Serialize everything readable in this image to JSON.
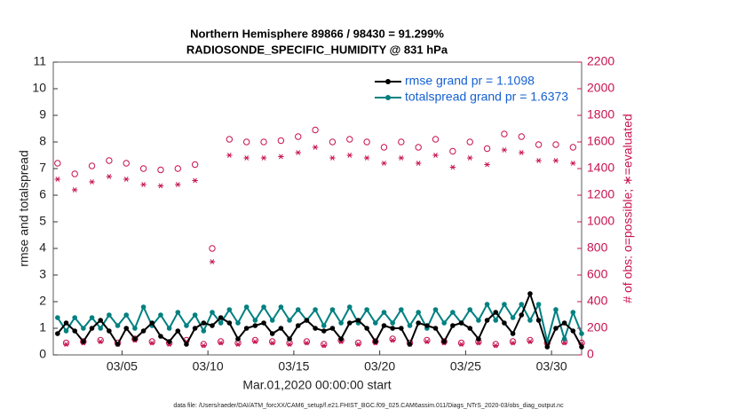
{
  "chart_data": {
    "type": "line",
    "title": "Northern Hemisphere 89866 / 98430 = 91.299%",
    "subtitle": "RADIOSONDE_SPECIFIC_HUMIDITY @ 831 hPa",
    "x_label": "Mar.01,2020 00:00:00 start",
    "y_label": "rmse and totalspread",
    "y2_label": "# of obs: o=possible; ∗=evaluated",
    "footer": "data file: /Users/raeder/DAI/ATM_forcXX/CAM6_setup/f.e21.FHIST_BGC.f09_025.CAM6assim.011/Diags_NTrS_2020-03/obs_diag_output.nc",
    "xlim": [
      0,
      30.75
    ],
    "xticks": [
      {
        "value": 4,
        "label": "03/05"
      },
      {
        "value": 9,
        "label": "03/10"
      },
      {
        "value": 14,
        "label": "03/15"
      },
      {
        "value": 19,
        "label": "03/20"
      },
      {
        "value": 24,
        "label": "03/25"
      },
      {
        "value": 29,
        "label": "03/30"
      }
    ],
    "ylim": [
      0,
      11
    ],
    "yticks": [
      0,
      1,
      2,
      3,
      4,
      5,
      6,
      7,
      8,
      9,
      10,
      11
    ],
    "y2lim": [
      0,
      2200
    ],
    "y2ticks": [
      0,
      200,
      400,
      600,
      800,
      1000,
      1200,
      1400,
      1600,
      1800,
      2000,
      2200
    ],
    "x": [
      0.25,
      0.75,
      1.25,
      1.75,
      2.25,
      2.75,
      3.25,
      3.75,
      4.25,
      4.75,
      5.25,
      5.75,
      6.25,
      6.75,
      7.25,
      7.75,
      8.25,
      8.75,
      9.25,
      9.75,
      10.25,
      10.75,
      11.25,
      11.75,
      12.25,
      12.75,
      13.25,
      13.75,
      14.25,
      14.75,
      15.25,
      15.75,
      16.25,
      16.75,
      17.25,
      17.75,
      18.25,
      18.75,
      19.25,
      19.75,
      20.25,
      20.75,
      21.25,
      21.75,
      22.25,
      22.75,
      23.25,
      23.75,
      24.25,
      24.75,
      25.25,
      25.75,
      26.25,
      26.75,
      27.25,
      27.75,
      28.25,
      28.75,
      29.25,
      29.75,
      30.25,
      30.75
    ],
    "series": [
      {
        "name": "rmse grand pr = 1.1098",
        "color": "#000000",
        "marker": "filled-circle",
        "line": true,
        "values": [
          0.8,
          1.2,
          0.9,
          0.5,
          1.0,
          1.3,
          0.9,
          0.4,
          1.0,
          0.6,
          0.9,
          1.2,
          0.7,
          0.5,
          0.9,
          0.4,
          1.0,
          1.2,
          1.1,
          1.4,
          1.2,
          0.6,
          1.0,
          1.1,
          1.2,
          0.8,
          1.0,
          0.6,
          1.1,
          1.3,
          1.0,
          0.9,
          1.0,
          0.6,
          1.2,
          1.3,
          1.0,
          0.5,
          1.1,
          1.0,
          1.0,
          0.4,
          1.2,
          1.1,
          1.0,
          0.5,
          1.1,
          1.2,
          1.0,
          0.6,
          1.3,
          1.6,
          1.2,
          0.8,
          1.5,
          2.3,
          1.3,
          0.3,
          1.0,
          1.2,
          0.9,
          0.3
        ]
      },
      {
        "name": "totalspread grand pr = 1.6373",
        "color": "#008080",
        "marker": "filled-circle",
        "line": true,
        "values": [
          1.4,
          0.9,
          1.4,
          1.0,
          1.4,
          1.0,
          1.5,
          1.1,
          1.5,
          1.0,
          1.8,
          1.1,
          1.5,
          1.0,
          1.6,
          1.1,
          1.5,
          0.9,
          1.6,
          1.2,
          1.7,
          1.2,
          1.8,
          1.3,
          1.8,
          1.3,
          1.8,
          1.3,
          1.7,
          1.3,
          1.7,
          1.1,
          1.7,
          1.2,
          1.8,
          1.2,
          1.7,
          1.2,
          1.6,
          1.2,
          1.7,
          1.1,
          1.6,
          1.0,
          1.7,
          1.2,
          1.6,
          1.2,
          1.7,
          1.3,
          1.9,
          1.3,
          1.9,
          1.4,
          1.9,
          1.3,
          1.9,
          0.5,
          1.7,
          0.6,
          1.6,
          0.8
        ]
      },
      {
        "color": "#c8134f",
        "marker": "open-circle",
        "line": false,
        "axis": "y2",
        "values": [
          1440,
          90,
          1360,
          100,
          1420,
          110,
          1460,
          90,
          1440,
          120,
          1400,
          100,
          1390,
          90,
          1400,
          110,
          1430,
          80,
          800,
          100,
          1620,
          90,
          1600,
          110,
          1600,
          100,
          1610,
          90,
          1640,
          100,
          1690,
          80,
          1600,
          110,
          1620,
          90,
          1600,
          100,
          1560,
          120,
          1600,
          90,
          1560,
          110,
          1620,
          100,
          1530,
          90,
          1600,
          100,
          1550,
          80,
          1660,
          100,
          1640,
          110,
          1580,
          90,
          1580,
          100,
          1560,
          90
        ]
      },
      {
        "color": "#c8134f",
        "marker": "asterisk",
        "line": false,
        "axis": "y2",
        "values": [
          1320,
          80,
          1240,
          90,
          1300,
          100,
          1340,
          80,
          1320,
          110,
          1280,
          90,
          1270,
          80,
          1280,
          100,
          1310,
          70,
          700,
          90,
          1500,
          80,
          1480,
          100,
          1480,
          90,
          1490,
          80,
          1520,
          90,
          1560,
          70,
          1480,
          100,
          1500,
          80,
          1480,
          90,
          1440,
          110,
          1480,
          80,
          1440,
          100,
          1500,
          90,
          1410,
          80,
          1480,
          90,
          1430,
          70,
          1540,
          90,
          1520,
          100,
          1460,
          80,
          1460,
          90,
          1440,
          80
        ]
      }
    ],
    "legend": "top-right"
  }
}
